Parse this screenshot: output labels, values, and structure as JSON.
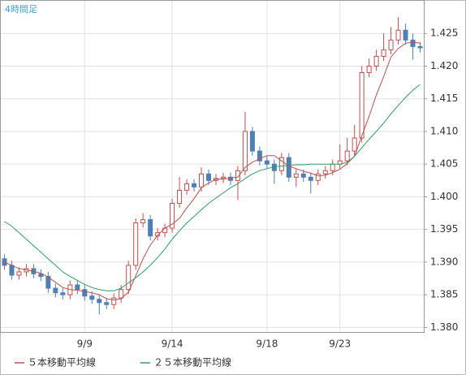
{
  "chart_data": {
    "type": "candlestick",
    "title": "4時間足",
    "categories": [
      null,
      null,
      null,
      null,
      null,
      null,
      null,
      null,
      null,
      null,
      null,
      "9/9",
      null,
      null,
      null,
      null,
      null,
      null,
      null,
      null,
      null,
      null,
      null,
      "9/14",
      null,
      null,
      null,
      null,
      null,
      null,
      null,
      null,
      null,
      null,
      null,
      null,
      "9/18",
      null,
      null,
      null,
      null,
      null,
      null,
      null,
      null,
      null,
      "9/23",
      null,
      null,
      null,
      null,
      null,
      null,
      null,
      null,
      null,
      null,
      null
    ],
    "open": [
      1.3905,
      1.3895,
      1.388,
      1.3885,
      1.389,
      1.3882,
      1.3878,
      1.386,
      1.3853,
      1.385,
      1.3865,
      1.3858,
      1.3848,
      1.3843,
      1.3838,
      1.3835,
      1.3845,
      1.3858,
      1.3895,
      1.396,
      1.3965,
      1.394,
      1.3945,
      1.3952,
      1.399,
      1.401,
      1.402,
      1.4015,
      1.4035,
      1.4025,
      1.4028,
      1.403,
      1.4025,
      1.404,
      1.41,
      1.407,
      1.4055,
      1.405,
      1.404,
      1.406,
      1.403,
      1.4035,
      1.403,
      1.4025,
      1.4035,
      1.404,
      1.405,
      1.4055,
      1.407,
      1.409,
      1.419,
      1.42,
      1.4215,
      1.4225,
      1.424,
      1.4255,
      1.424,
      1.423
    ],
    "high": [
      1.3912,
      1.3902,
      1.3892,
      1.3897,
      1.3897,
      1.3889,
      1.3885,
      1.3867,
      1.386,
      1.3872,
      1.3872,
      1.3865,
      1.3855,
      1.385,
      1.3845,
      1.3852,
      1.3865,
      1.3902,
      1.3967,
      1.3975,
      1.3972,
      1.3952,
      1.3959,
      1.3997,
      1.403,
      1.4027,
      1.4027,
      1.4045,
      1.4042,
      1.4035,
      1.4037,
      1.4037,
      1.4047,
      1.413,
      1.4107,
      1.4077,
      1.4062,
      1.4057,
      1.4067,
      1.4067,
      1.4042,
      1.4042,
      1.4037,
      1.4042,
      1.4047,
      1.4057,
      1.408,
      1.409,
      1.411,
      1.42,
      1.4212,
      1.4225,
      1.425,
      1.426,
      1.4275,
      1.4265,
      1.425,
      1.4237
    ],
    "low": [
      1.3888,
      1.3873,
      1.3873,
      1.3878,
      1.3875,
      1.3871,
      1.3853,
      1.3846,
      1.3843,
      1.3843,
      1.3851,
      1.3841,
      1.3836,
      1.382,
      1.3828,
      1.3828,
      1.3838,
      1.3851,
      1.3888,
      1.3953,
      1.3933,
      1.3933,
      1.3938,
      1.3945,
      1.3983,
      1.4003,
      1.4008,
      1.4008,
      1.4018,
      1.4018,
      1.4021,
      1.4018,
      1.3995,
      1.4033,
      1.4063,
      1.4048,
      1.4043,
      1.402,
      1.4033,
      1.4023,
      1.4015,
      1.4023,
      1.4005,
      1.4018,
      1.4028,
      1.4033,
      1.4043,
      1.4048,
      1.4063,
      1.4083,
      1.4183,
      1.4193,
      1.4208,
      1.4218,
      1.4233,
      1.4233,
      1.421,
      1.4221
    ],
    "close": [
      1.3895,
      1.388,
      1.3885,
      1.389,
      1.3882,
      1.3878,
      1.386,
      1.3853,
      1.385,
      1.3865,
      1.3858,
      1.3848,
      1.3843,
      1.3838,
      1.3835,
      1.3845,
      1.3858,
      1.3895,
      1.396,
      1.3965,
      1.394,
      1.3945,
      1.3952,
      1.399,
      1.401,
      1.402,
      1.4015,
      1.4035,
      1.4025,
      1.4028,
      1.403,
      1.4025,
      1.404,
      1.41,
      1.407,
      1.4055,
      1.405,
      1.404,
      1.406,
      1.403,
      1.4035,
      1.403,
      1.4025,
      1.4035,
      1.404,
      1.405,
      1.4055,
      1.407,
      1.409,
      1.419,
      1.42,
      1.4215,
      1.4225,
      1.424,
      1.4255,
      1.424,
      1.423,
      1.4228
    ],
    "up_color": "#c0504d",
    "down_color": "#4f7fb5",
    "series": [
      {
        "name": "５本移動平均線",
        "color": "#c0504d",
        "values": [
          1.39,
          1.3895,
          1.389,
          1.3888,
          1.3886,
          1.3883,
          1.3877,
          1.3869,
          1.3861,
          1.3858,
          1.3857,
          1.3855,
          1.3853,
          1.385,
          1.3844,
          1.3842,
          1.3844,
          1.3854,
          1.3879,
          1.3905,
          1.3926,
          1.3941,
          1.3952,
          1.3958,
          1.3967,
          1.3983,
          1.3997,
          1.4014,
          1.4021,
          1.4027,
          1.4027,
          1.4029,
          1.403,
          1.4045,
          1.4053,
          1.4058,
          1.4063,
          1.4063,
          1.4055,
          1.4047,
          1.4043,
          1.4039,
          1.4036,
          1.4032,
          1.4033,
          1.4037,
          1.4042,
          1.4051,
          1.4062,
          1.4093,
          1.4123,
          1.4156,
          1.4184,
          1.4214,
          1.4227,
          1.4235,
          1.4237,
          1.4235
        ]
      },
      {
        "name": "２５本移動平均線",
        "color": "#2e9e6a",
        "values": [
          1.3962,
          1.3955,
          1.3945,
          1.3935,
          1.3925,
          1.3915,
          1.3905,
          1.3895,
          1.3885,
          1.3878,
          1.3872,
          1.3866,
          1.3861,
          1.3858,
          1.3856,
          1.3856,
          1.386,
          1.3868,
          1.3876,
          1.3885,
          1.3895,
          1.3907,
          1.392,
          1.3935,
          1.3948,
          1.396,
          1.397,
          1.398,
          1.399,
          1.3998,
          1.4006,
          1.4014,
          1.402,
          1.4028,
          1.4035,
          1.404,
          1.4043,
          1.4046,
          1.4047,
          1.4048,
          1.4049,
          1.4049,
          1.405,
          1.405,
          1.405,
          1.405,
          1.405,
          1.4053,
          1.4062,
          1.4075,
          1.4088,
          1.41,
          1.4113,
          1.4127,
          1.414,
          1.4152,
          1.4163,
          1.4172
        ]
      }
    ],
    "ylim": [
      1.3793,
      1.43
    ],
    "yticks": [
      {
        "value": 1.38,
        "label": "1.380"
      },
      1.385,
      {
        "value": 1.39,
        "label": "1.390"
      },
      1.395,
      {
        "value": 1.4,
        "label": "1.400"
      },
      1.405,
      {
        "value": 1.41,
        "label": "1.410"
      },
      1.415,
      {
        "value": 1.42,
        "label": "1.420"
      },
      1.425
    ],
    "grid": true
  }
}
